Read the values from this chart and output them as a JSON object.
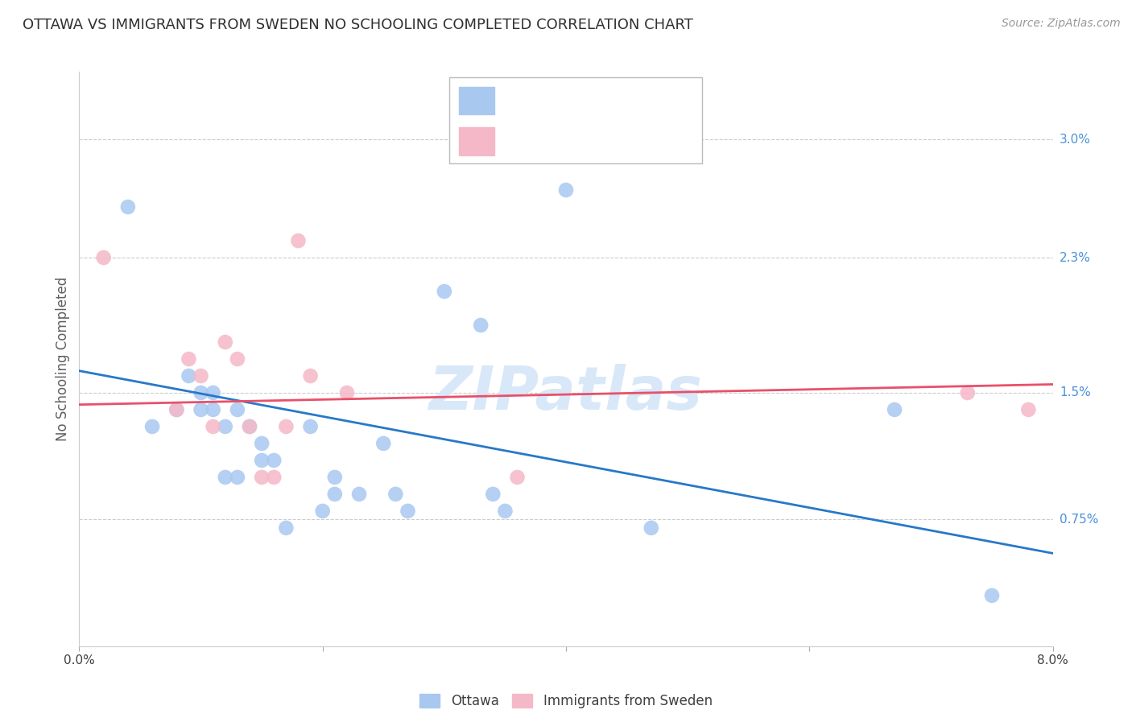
{
  "title": "OTTAWA VS IMMIGRANTS FROM SWEDEN NO SCHOOLING COMPLETED CORRELATION CHART",
  "source": "Source: ZipAtlas.com",
  "ylabel": "No Schooling Completed",
  "watermark": "ZIPatlas",
  "xlim": [
    0.0,
    0.08
  ],
  "ylim": [
    0.0,
    0.034
  ],
  "ytick_labels_right": [
    "0.75%",
    "1.5%",
    "2.3%",
    "3.0%"
  ],
  "ytick_positions_right": [
    0.0075,
    0.015,
    0.023,
    0.03
  ],
  "blue_color": "#A8C8F0",
  "pink_color": "#F5B8C8",
  "blue_line_color": "#2878C8",
  "pink_line_color": "#E8506A",
  "title_color": "#303030",
  "axis_label_color": "#606060",
  "right_tick_color": "#4A90D9",
  "blue_scatter": [
    [
      0.004,
      0.026
    ],
    [
      0.006,
      0.013
    ],
    [
      0.008,
      0.014
    ],
    [
      0.009,
      0.016
    ],
    [
      0.01,
      0.015
    ],
    [
      0.01,
      0.014
    ],
    [
      0.011,
      0.015
    ],
    [
      0.011,
      0.014
    ],
    [
      0.012,
      0.013
    ],
    [
      0.012,
      0.01
    ],
    [
      0.013,
      0.01
    ],
    [
      0.013,
      0.014
    ],
    [
      0.014,
      0.013
    ],
    [
      0.015,
      0.012
    ],
    [
      0.015,
      0.011
    ],
    [
      0.016,
      0.011
    ],
    [
      0.017,
      0.007
    ],
    [
      0.019,
      0.013
    ],
    [
      0.02,
      0.008
    ],
    [
      0.021,
      0.01
    ],
    [
      0.021,
      0.009
    ],
    [
      0.023,
      0.009
    ],
    [
      0.025,
      0.012
    ],
    [
      0.026,
      0.009
    ],
    [
      0.027,
      0.008
    ],
    [
      0.03,
      0.021
    ],
    [
      0.033,
      0.019
    ],
    [
      0.034,
      0.009
    ],
    [
      0.035,
      0.008
    ],
    [
      0.04,
      0.027
    ],
    [
      0.047,
      0.007
    ],
    [
      0.067,
      0.014
    ],
    [
      0.075,
      0.003
    ]
  ],
  "pink_scatter": [
    [
      0.002,
      0.023
    ],
    [
      0.008,
      0.014
    ],
    [
      0.009,
      0.017
    ],
    [
      0.01,
      0.016
    ],
    [
      0.011,
      0.013
    ],
    [
      0.012,
      0.018
    ],
    [
      0.013,
      0.017
    ],
    [
      0.014,
      0.013
    ],
    [
      0.015,
      0.01
    ],
    [
      0.016,
      0.01
    ],
    [
      0.017,
      0.013
    ],
    [
      0.018,
      0.024
    ],
    [
      0.019,
      0.016
    ],
    [
      0.022,
      0.015
    ],
    [
      0.036,
      0.01
    ],
    [
      0.073,
      0.015
    ],
    [
      0.078,
      0.014
    ]
  ],
  "blue_trend_x": [
    0.0,
    0.08
  ],
  "blue_trend_y": [
    0.0163,
    0.0055
  ],
  "pink_trend_x": [
    0.0,
    0.08
  ],
  "pink_trend_y": [
    0.0143,
    0.0155
  ]
}
